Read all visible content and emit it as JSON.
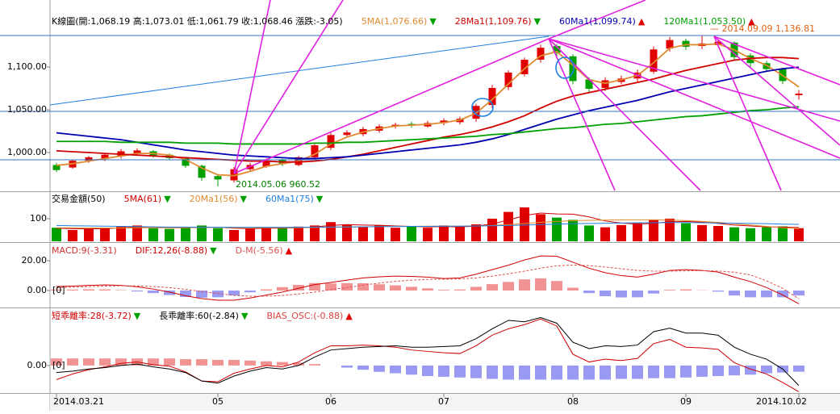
{
  "chart_data": [
    {
      "type": "candlestick",
      "title": "K線圖(開:1,068.19 高:1,073.01 低:1,061.79 收:1,068.46 漲跌:-3.05)",
      "up_color": "#e00000",
      "down_color": "#00a000",
      "categories": [
        "2014.03.21",
        null,
        null,
        null,
        null,
        null,
        null,
        null,
        null,
        null,
        "05",
        null,
        null,
        null,
        null,
        null,
        null,
        "06",
        null,
        null,
        null,
        null,
        null,
        null,
        "07",
        null,
        null,
        null,
        null,
        null,
        null,
        null,
        "08",
        null,
        null,
        null,
        null,
        null,
        null,
        "09",
        null,
        null,
        null,
        null,
        null,
        null,
        "2014.10.02"
      ],
      "open": [
        985,
        983,
        991,
        993,
        996,
        999,
        1001,
        997,
        993,
        984,
        972,
        968,
        981,
        984,
        991,
        986,
        995,
        1006,
        1021,
        1022,
        1026,
        1031,
        1033,
        1031,
        1035,
        1036,
        1040,
        1056,
        1077,
        1092,
        1109,
        1124,
        1112,
        1085,
        1076,
        1083,
        1087,
        1095,
        1122,
        1130,
        1125,
        1126,
        1128,
        1113,
        1104,
        1097,
        1068.19
      ],
      "high": [
        988,
        992,
        996,
        999,
        1004,
        1005,
        1003,
        999,
        995,
        986,
        975,
        983,
        988,
        993,
        993,
        996,
        1010,
        1023,
        1026,
        1030,
        1033,
        1035,
        1036,
        1037,
        1040,
        1042,
        1057,
        1079,
        1096,
        1111,
        1126,
        1127,
        1115,
        1088,
        1088,
        1090,
        1097,
        1124,
        1135,
        1133,
        1136.81,
        1132,
        1130,
        1116,
        1107,
        1099,
        1073.01
      ],
      "low": [
        977,
        981,
        988,
        990,
        993,
        996,
        994,
        991,
        982,
        967,
        960.52,
        965,
        978,
        982,
        984,
        984,
        992,
        1003,
        1018,
        1019,
        1023,
        1028,
        1029,
        1029,
        1032,
        1033,
        1036,
        1052,
        1073,
        1089,
        1105,
        1113,
        1080,
        1070,
        1072,
        1080,
        1083,
        1092,
        1118,
        1120,
        1121,
        1123,
        1108,
        1100,
        1094,
        1080,
        1061.79
      ],
      "close": [
        980,
        990,
        994,
        997,
        1001,
        1002,
        997,
        994,
        985,
        971,
        969,
        980,
        985,
        990,
        987,
        994,
        1008,
        1020,
        1023,
        1027,
        1030,
        1032,
        1032,
        1034,
        1037,
        1039,
        1054,
        1075,
        1093,
        1108,
        1122,
        1117,
        1084,
        1075,
        1084,
        1086,
        1093,
        1120,
        1131,
        1124,
        1127,
        1129,
        1112,
        1105,
        1098,
        1084,
        1068.46
      ],
      "series": [
        {
          "name": "5MA(1,076.66)",
          "color": "#e08a30",
          "arrow": "▼",
          "arrow_color": "#00a000",
          "values": [
            985,
            987,
            990,
            993,
            996,
            999,
            999,
            997,
            992,
            982,
            974,
            973,
            978,
            984,
            987,
            990,
            998,
            1010,
            1018,
            1024,
            1028,
            1031,
            1032,
            1033,
            1035,
            1038,
            1046,
            1062,
            1080,
            1098,
            1113,
            1118,
            1102,
            1085,
            1081,
            1085,
            1090,
            1105,
            1122,
            1126,
            1126,
            1127,
            1120,
            1110,
            1102,
            1090,
            1076.66
          ]
        },
        {
          "name": "28Ma1(1,109.76)",
          "color": "#d00000",
          "arrow": "▼",
          "arrow_color": "#00a000",
          "values": [
            1002,
            1001,
            1000,
            999,
            998,
            997,
            996,
            995,
            994,
            993,
            992,
            991,
            990,
            990,
            989,
            989,
            990,
            992,
            995,
            998,
            1002,
            1006,
            1010,
            1014,
            1018,
            1021,
            1025,
            1030,
            1036,
            1043,
            1052,
            1060,
            1066,
            1070,
            1074,
            1078,
            1082,
            1086,
            1091,
            1096,
            1100,
            1104,
            1108,
            1110,
            1111,
            1111,
            1109.76
          ]
        },
        {
          "name": "60Ma1(1,099.74)",
          "color": "#0000b0",
          "arrow": "▲",
          "arrow_color": "#e00000",
          "values": [
            1023,
            1021,
            1019,
            1017,
            1015,
            1012,
            1009,
            1006,
            1003,
            1001,
            999,
            997,
            996,
            995,
            994,
            993,
            993,
            994,
            995,
            997,
            999,
            1001,
            1003,
            1005,
            1007,
            1009,
            1012,
            1016,
            1021,
            1027,
            1033,
            1039,
            1044,
            1049,
            1053,
            1057,
            1061,
            1066,
            1071,
            1075,
            1079,
            1083,
            1087,
            1091,
            1095,
            1098,
            1099.74
          ]
        },
        {
          "name": "120Ma1(1,053.50)",
          "color": "#00a000",
          "arrow": "▲",
          "arrow_color": "#e00000",
          "values": [
            1013,
            1013,
            1013,
            1013,
            1012,
            1012,
            1012,
            1012,
            1011,
            1011,
            1011,
            1010,
            1010,
            1010,
            1010,
            1010,
            1011,
            1011,
            1012,
            1012,
            1013,
            1014,
            1015,
            1016,
            1017,
            1018,
            1019,
            1021,
            1022,
            1024,
            1026,
            1028,
            1029,
            1031,
            1033,
            1034,
            1036,
            1038,
            1040,
            1042,
            1043,
            1045,
            1047,
            1049,
            1050,
            1052,
            1053.5
          ]
        }
      ],
      "ylim": [
        955.7,
        1161.3
      ],
      "yticks": [
        {
          "value": 1000,
          "label": "1,000.00"
        },
        {
          "value": 1050,
          "label": "1,050.00"
        },
        {
          "value": 1100,
          "label": "1,100.00"
        }
      ],
      "annotations": [
        {
          "text": "— 2014.09.09   1,136.81",
          "color": "#e06010"
        },
        {
          "text": "2014.05.06   960.52",
          "color": "#008000"
        }
      ]
    },
    {
      "type": "bar",
      "title": "交易金額(50)",
      "up_color": "#e00000",
      "down_color": "#00a000",
      "values": [
        60,
        50,
        55,
        58,
        65,
        70,
        58,
        55,
        62,
        70,
        58,
        50,
        55,
        62,
        58,
        65,
        70,
        85,
        75,
        65,
        70,
        60,
        65,
        60,
        70,
        65,
        75,
        100,
        130,
        150,
        120,
        105,
        95,
        70,
        62,
        72,
        80,
        95,
        100,
        80,
        72,
        68,
        62,
        58,
        62,
        66,
        58
      ],
      "series": [
        {
          "name": "5MA(61)",
          "color": "#d00000",
          "arrow": "▼",
          "arrow_color": "#00a000",
          "values": [
            58,
            56,
            55,
            56,
            60,
            64,
            63,
            60,
            60,
            63,
            62,
            58,
            56,
            58,
            58,
            60,
            64,
            70,
            74,
            72,
            71,
            68,
            66,
            64,
            65,
            64,
            67,
            77,
            94,
            114,
            125,
            121,
            120,
            108,
            90,
            81,
            76,
            80,
            86,
            88,
            85,
            79,
            72,
            68,
            64,
            63,
            61
          ]
        },
        {
          "name": "20Ma1(56)",
          "color": "#e08a30",
          "arrow": "▼",
          "arrow_color": "#00a000",
          "values": [
            60,
            60,
            59,
            59,
            59,
            60,
            60,
            60,
            60,
            61,
            61,
            60,
            60,
            60,
            60,
            60,
            61,
            62,
            63,
            64,
            65,
            66,
            66,
            67,
            67,
            67,
            68,
            70,
            74,
            79,
            84,
            88,
            91,
            93,
            94,
            95,
            95,
            95,
            94,
            92,
            88,
            84,
            78,
            72,
            66,
            60,
            56
          ]
        },
        {
          "name": "60Ma1(75)",
          "color": "#2080e0",
          "arrow": "▼",
          "arrow_color": "#00a000",
          "values": [
            70,
            69,
            68,
            67,
            66,
            65,
            64,
            63,
            63,
            62,
            62,
            62,
            62,
            62,
            62,
            62,
            63,
            63,
            64,
            64,
            65,
            65,
            66,
            66,
            67,
            67,
            68,
            69,
            70,
            72,
            74,
            76,
            78,
            79,
            80,
            81,
            82,
            82,
            83,
            83,
            82,
            81,
            80,
            79,
            78,
            76,
            75
          ]
        }
      ],
      "ylim": [
        0,
        218
      ],
      "yticks": [
        100
      ]
    },
    {
      "type": "indicator",
      "baseline_label": "[0]",
      "series": [
        {
          "name": "MACD:9(-3.31)",
          "style": "histogram",
          "color": "#d03030",
          "color_pos": "#f08080",
          "color_neg": "#8888f0",
          "values": [
            0.7,
            0.7,
            0.9,
            0.8,
            0.3,
            -0.6,
            -1.7,
            -3,
            -4.3,
            -4.8,
            -4.5,
            -3.3,
            -1.2,
            0.8,
            2.3,
            3.8,
            5,
            4.8,
            5,
            4.9,
            4.2,
            3.5,
            2.5,
            1.5,
            0.5,
            0.7,
            2.5,
            4.3,
            5.8,
            7.5,
            8.2,
            6.4,
            1.9,
            -1.7,
            -3.8,
            -4.6,
            -4.5,
            -2,
            0.5,
            0.8,
            0.2,
            -0.7,
            -3.3,
            -4.5,
            -4.5,
            -4.5,
            -3.31
          ]
        },
        {
          "name": "DIF:12,26(-8.88)",
          "style": "line",
          "color": "#d00000",
          "arrow": "▼",
          "arrow_color": "#00a000",
          "values": [
            2.7,
            3,
            3.5,
            3.8,
            3.5,
            2.5,
            1,
            -1,
            -3.5,
            -5.4,
            -6.5,
            -6.5,
            -5,
            -3,
            -1,
            1.5,
            4,
            5.4,
            7,
            8.5,
            9.2,
            9.7,
            9.5,
            9,
            8.1,
            8.5,
            11,
            14,
            17,
            20.5,
            23.2,
            23,
            19,
            15,
            12,
            10,
            9,
            11,
            13.5,
            14,
            13.5,
            12.4,
            9,
            6,
            2,
            -3,
            -8.88
          ]
        },
        {
          "name": "D-M(-5.56)",
          "style": "dashed",
          "color": "#e05050",
          "arrow": "▲",
          "arrow_color": "#e00000",
          "values": [
            2,
            2.3,
            2.6,
            3,
            3.2,
            3.1,
            2.7,
            2,
            0.8,
            -0.6,
            -2,
            -3.2,
            -3.8,
            -3.8,
            -3.3,
            -2.3,
            -1,
            0.6,
            2,
            3.6,
            5,
            6.2,
            7,
            7.5,
            7.6,
            7.8,
            8.5,
            9.7,
            11.2,
            13,
            15,
            16.6,
            17.1,
            16.7,
            15.8,
            14.6,
            13.5,
            13,
            13,
            13.2,
            13.3,
            13.1,
            12.3,
            10.5,
            6.5,
            1.5,
            -5.56
          ]
        }
      ],
      "ylim": [
        -10.8,
        31.4
      ],
      "yticks": [
        {
          "value": 0,
          "label": "0.00"
        },
        {
          "value": 20,
          "label": "20.00"
        }
      ]
    },
    {
      "type": "indicator",
      "baseline_label": "[0]",
      "series": [
        {
          "name": "短乖離率:28(-3.72)",
          "style": "line",
          "color": "#d00000",
          "arrow": "▼",
          "arrow_color": "#00a000",
          "values": [
            -2,
            -1.2,
            -0.6,
            -0.2,
            0.3,
            0.5,
            0.1,
            -0.1,
            -0.9,
            -2.2,
            -2.3,
            -1.1,
            -0.5,
            0,
            -0.2,
            0.5,
            1.8,
            2.8,
            2.8,
            2.9,
            2.8,
            2.6,
            2.2,
            2,
            1.8,
            1.7,
            2.8,
            4.3,
            5.2,
            5.8,
            6.6,
            5.6,
            1.6,
            0.5,
            0.9,
            0.7,
            1,
            3.1,
            3.7,
            2.6,
            2.5,
            2.3,
            0.4,
            -0.5,
            -1.2,
            -2.4,
            -3.72
          ]
        },
        {
          "name": "長乖離率:60(-2.84)",
          "style": "line",
          "color": "#000000",
          "arrow": "▼",
          "arrow_color": "#00a000",
          "values": [
            -1,
            -0.8,
            -0.5,
            -0.3,
            0,
            0.2,
            -0.2,
            -0.5,
            -1,
            -2.2,
            -2.5,
            -1.5,
            -0.8,
            -0.3,
            -0.5,
            0,
            1.2,
            2.2,
            2.4,
            2.6,
            2.7,
            2.8,
            2.6,
            2.6,
            2.7,
            2.8,
            3.8,
            5.2,
            6.4,
            6.2,
            6.8,
            6,
            3.3,
            2.4,
            2.8,
            2.7,
            2.9,
            4.8,
            5.3,
            4.6,
            4.6,
            4.3,
            2.6,
            1.6,
            0.9,
            -0.5,
            -2.84
          ]
        },
        {
          "name": "BIAS_OSC:(-0.88)",
          "style": "histogram",
          "color": "#e04040",
          "color_pos": "#f08080",
          "color_neg": "#8888f0",
          "arrow": "▲",
          "arrow_color": "#e00000",
          "values": [
            1,
            1,
            1,
            1,
            1,
            1,
            1,
            1,
            0.9,
            0.9,
            0.8,
            0.8,
            0.7,
            0.6,
            0.5,
            0.4,
            0.2,
            0,
            -0.3,
            -0.6,
            -0.9,
            -1.1,
            -1.3,
            -1.5,
            -1.6,
            -1.7,
            -1.8,
            -1.9,
            -2,
            -2,
            -2,
            -2,
            -2,
            -2,
            -2,
            -1.9,
            -1.9,
            -1.8,
            -1.8,
            -1.7,
            -1.6,
            -1.5,
            -1.4,
            -1.3,
            -1.1,
            -1,
            -0.88
          ]
        }
      ],
      "ylim": [
        -3.9,
        8.0
      ],
      "yticks": [
        {
          "value": 0,
          "label": "0.00"
        }
      ]
    }
  ]
}
